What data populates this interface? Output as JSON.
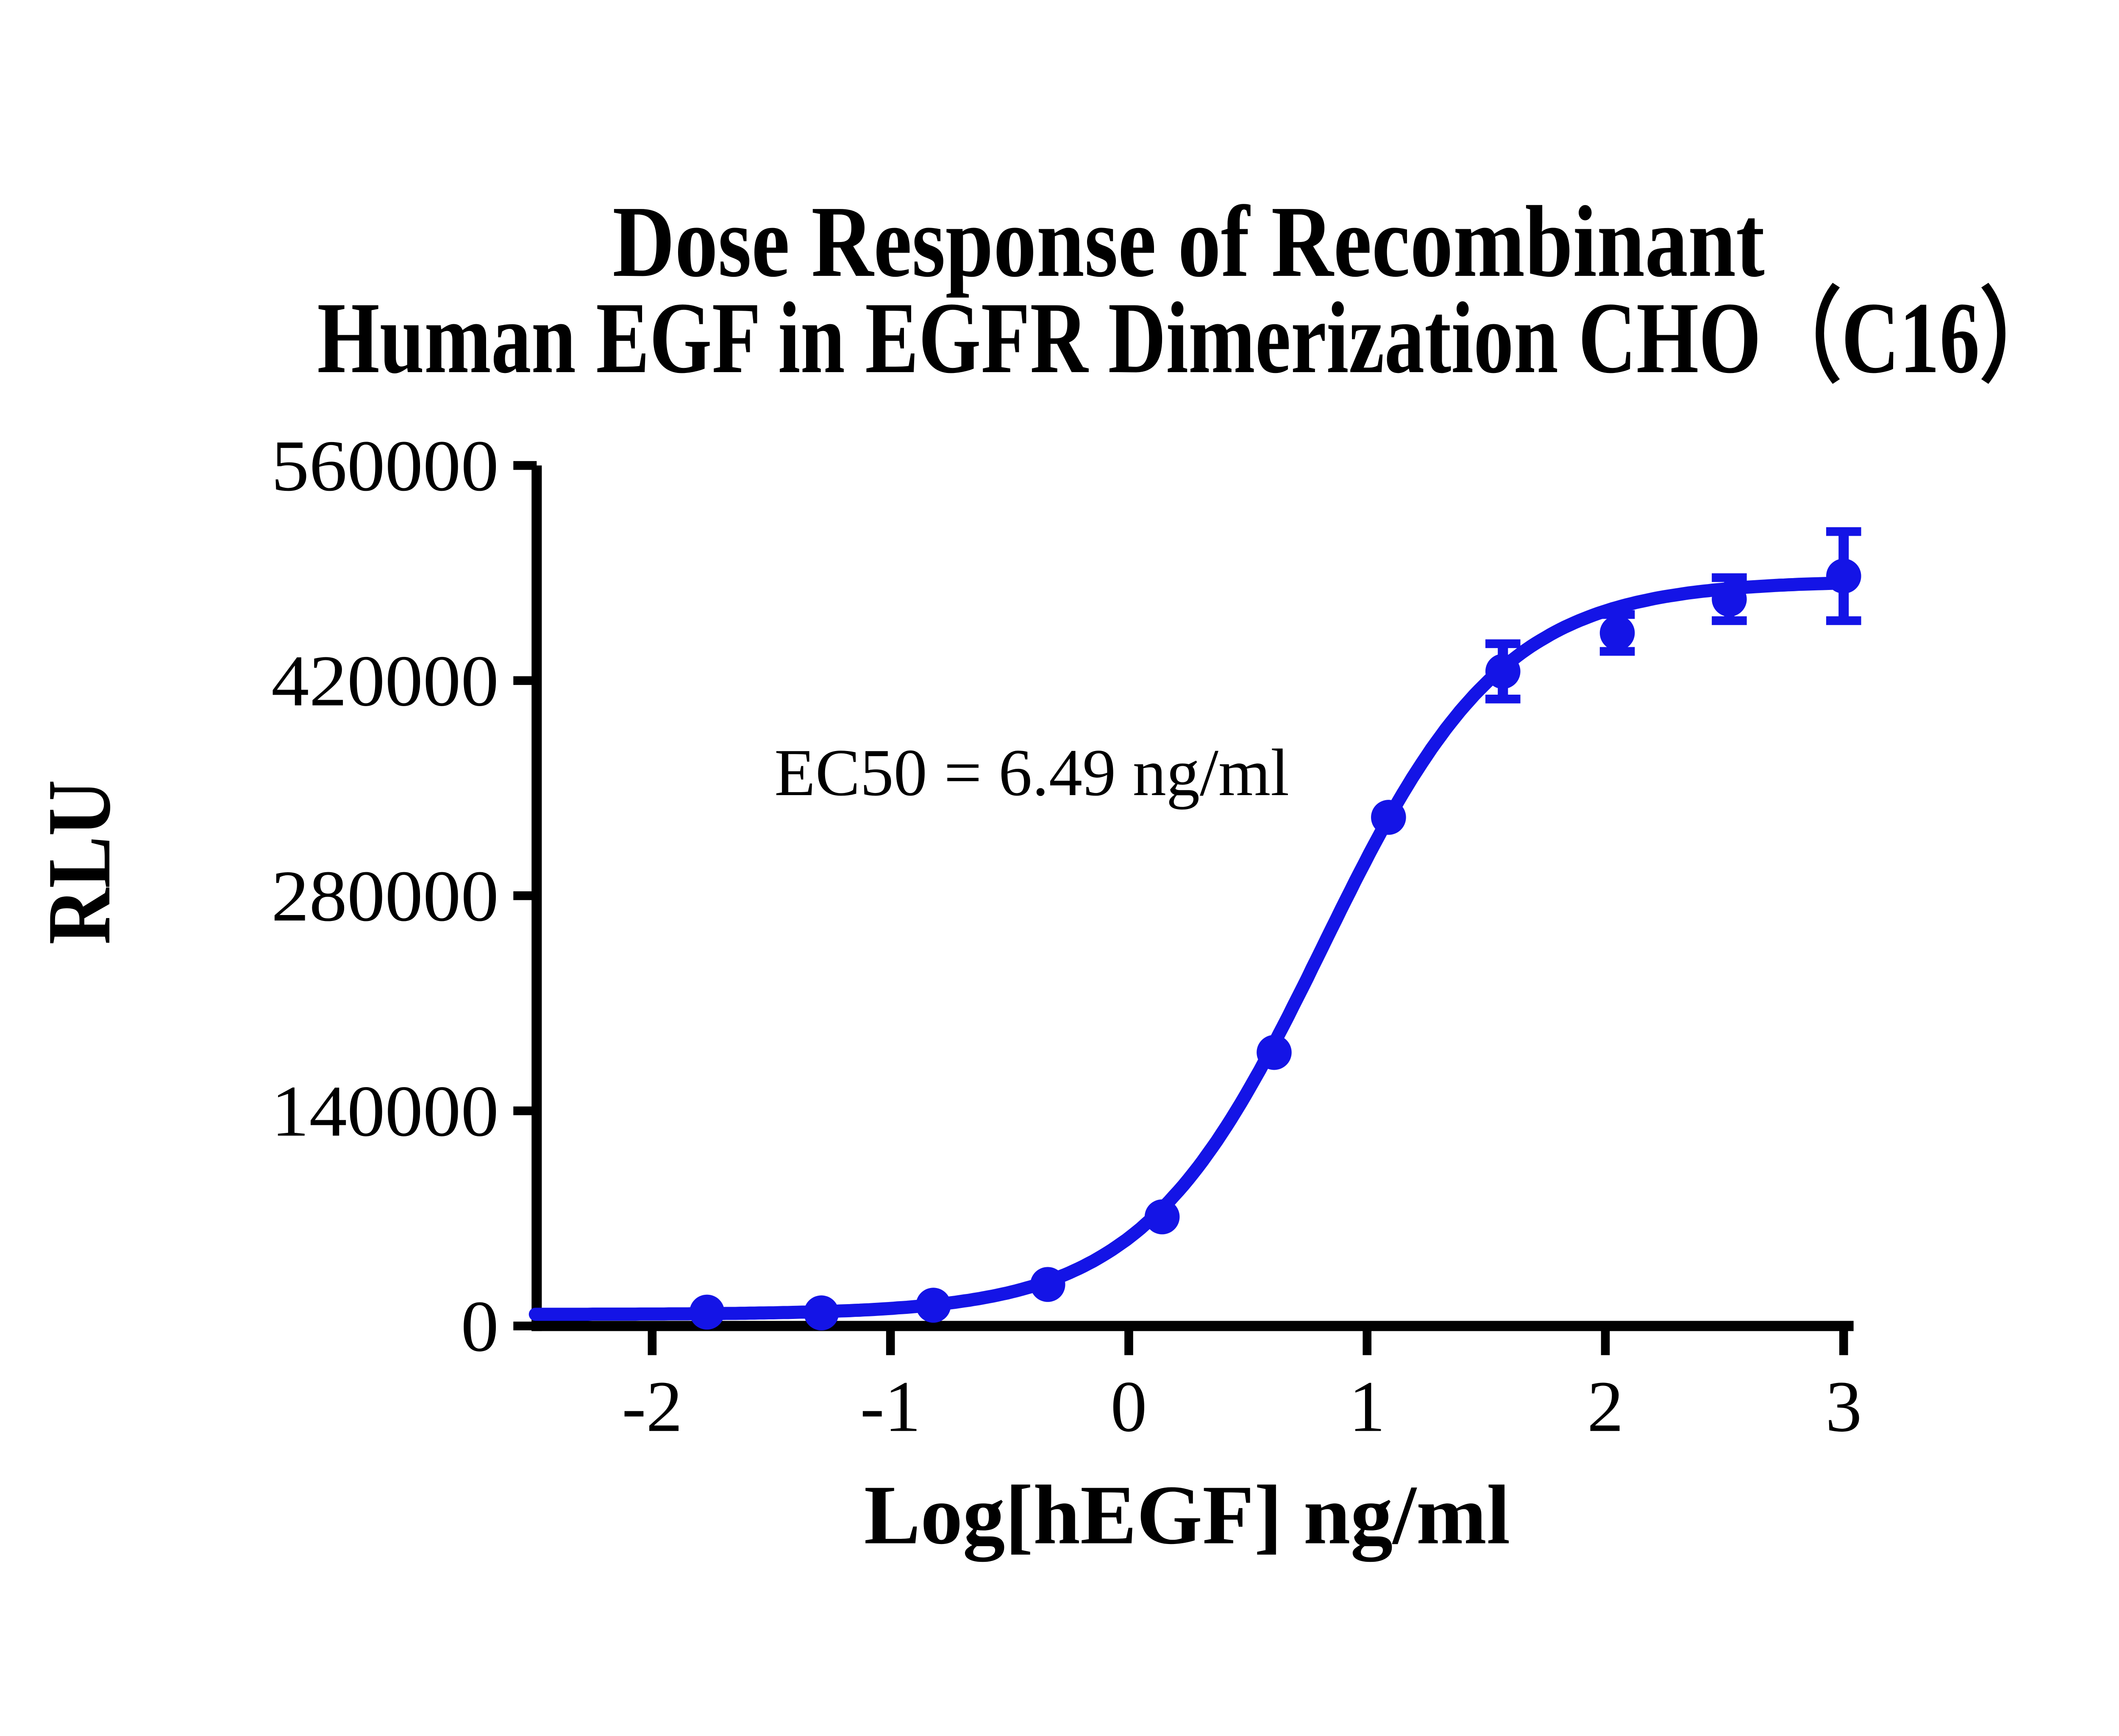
{
  "page": {
    "background": "#ffffff"
  },
  "chart_data": {
    "type": "scatter",
    "subtype": "dose-response-curve-with-error-bars",
    "title_line1": "Dose Response of Recombinant",
    "title_line2": "Human EGF in EGFR Dimerization CHO（C16）",
    "xlabel": "Log[hEGF] ng/ml",
    "ylabel": "RLU",
    "annotation": "EC50 = 6.49 ng/ml",
    "ec50_ng_ml": 6.49,
    "x_ticks": [
      -2,
      -1,
      0,
      1,
      2,
      3
    ],
    "y_ticks": [
      0,
      140000,
      280000,
      420000,
      560000
    ],
    "xlim": [
      -2.49,
      3.03
    ],
    "ylim": [
      0,
      560000
    ],
    "grid": false,
    "legend_position": "none",
    "series": [
      {
        "name": "hEGF",
        "marker": "circle",
        "points": [
          {
            "x": -1.77,
            "y": 9000,
            "err": 0
          },
          {
            "x": -1.29,
            "y": 8500,
            "err": 0
          },
          {
            "x": -0.82,
            "y": 13500,
            "err": 0
          },
          {
            "x": -0.34,
            "y": 27000,
            "err": 0
          },
          {
            "x": 0.14,
            "y": 71000,
            "err": 0
          },
          {
            "x": 0.61,
            "y": 178000,
            "err": 0
          },
          {
            "x": 1.09,
            "y": 331000,
            "err": 0
          },
          {
            "x": 1.57,
            "y": 426000,
            "err": 18000
          },
          {
            "x": 2.05,
            "y": 451000,
            "err": 12000
          },
          {
            "x": 2.52,
            "y": 473000,
            "err": 14000
          },
          {
            "x": 3.0,
            "y": 488000,
            "err": 29000
          }
        ]
      }
    ],
    "fit_curve": {
      "model": "four-parameter-logistic",
      "bottom": 7500,
      "top": 485000,
      "log_ec50": 0.812,
      "hill_slope": 1.15,
      "x_start": -2.49,
      "x_end": 3.0
    },
    "colors": {
      "series": "#1414e6",
      "axis": "#000000",
      "text": "#000000"
    }
  }
}
